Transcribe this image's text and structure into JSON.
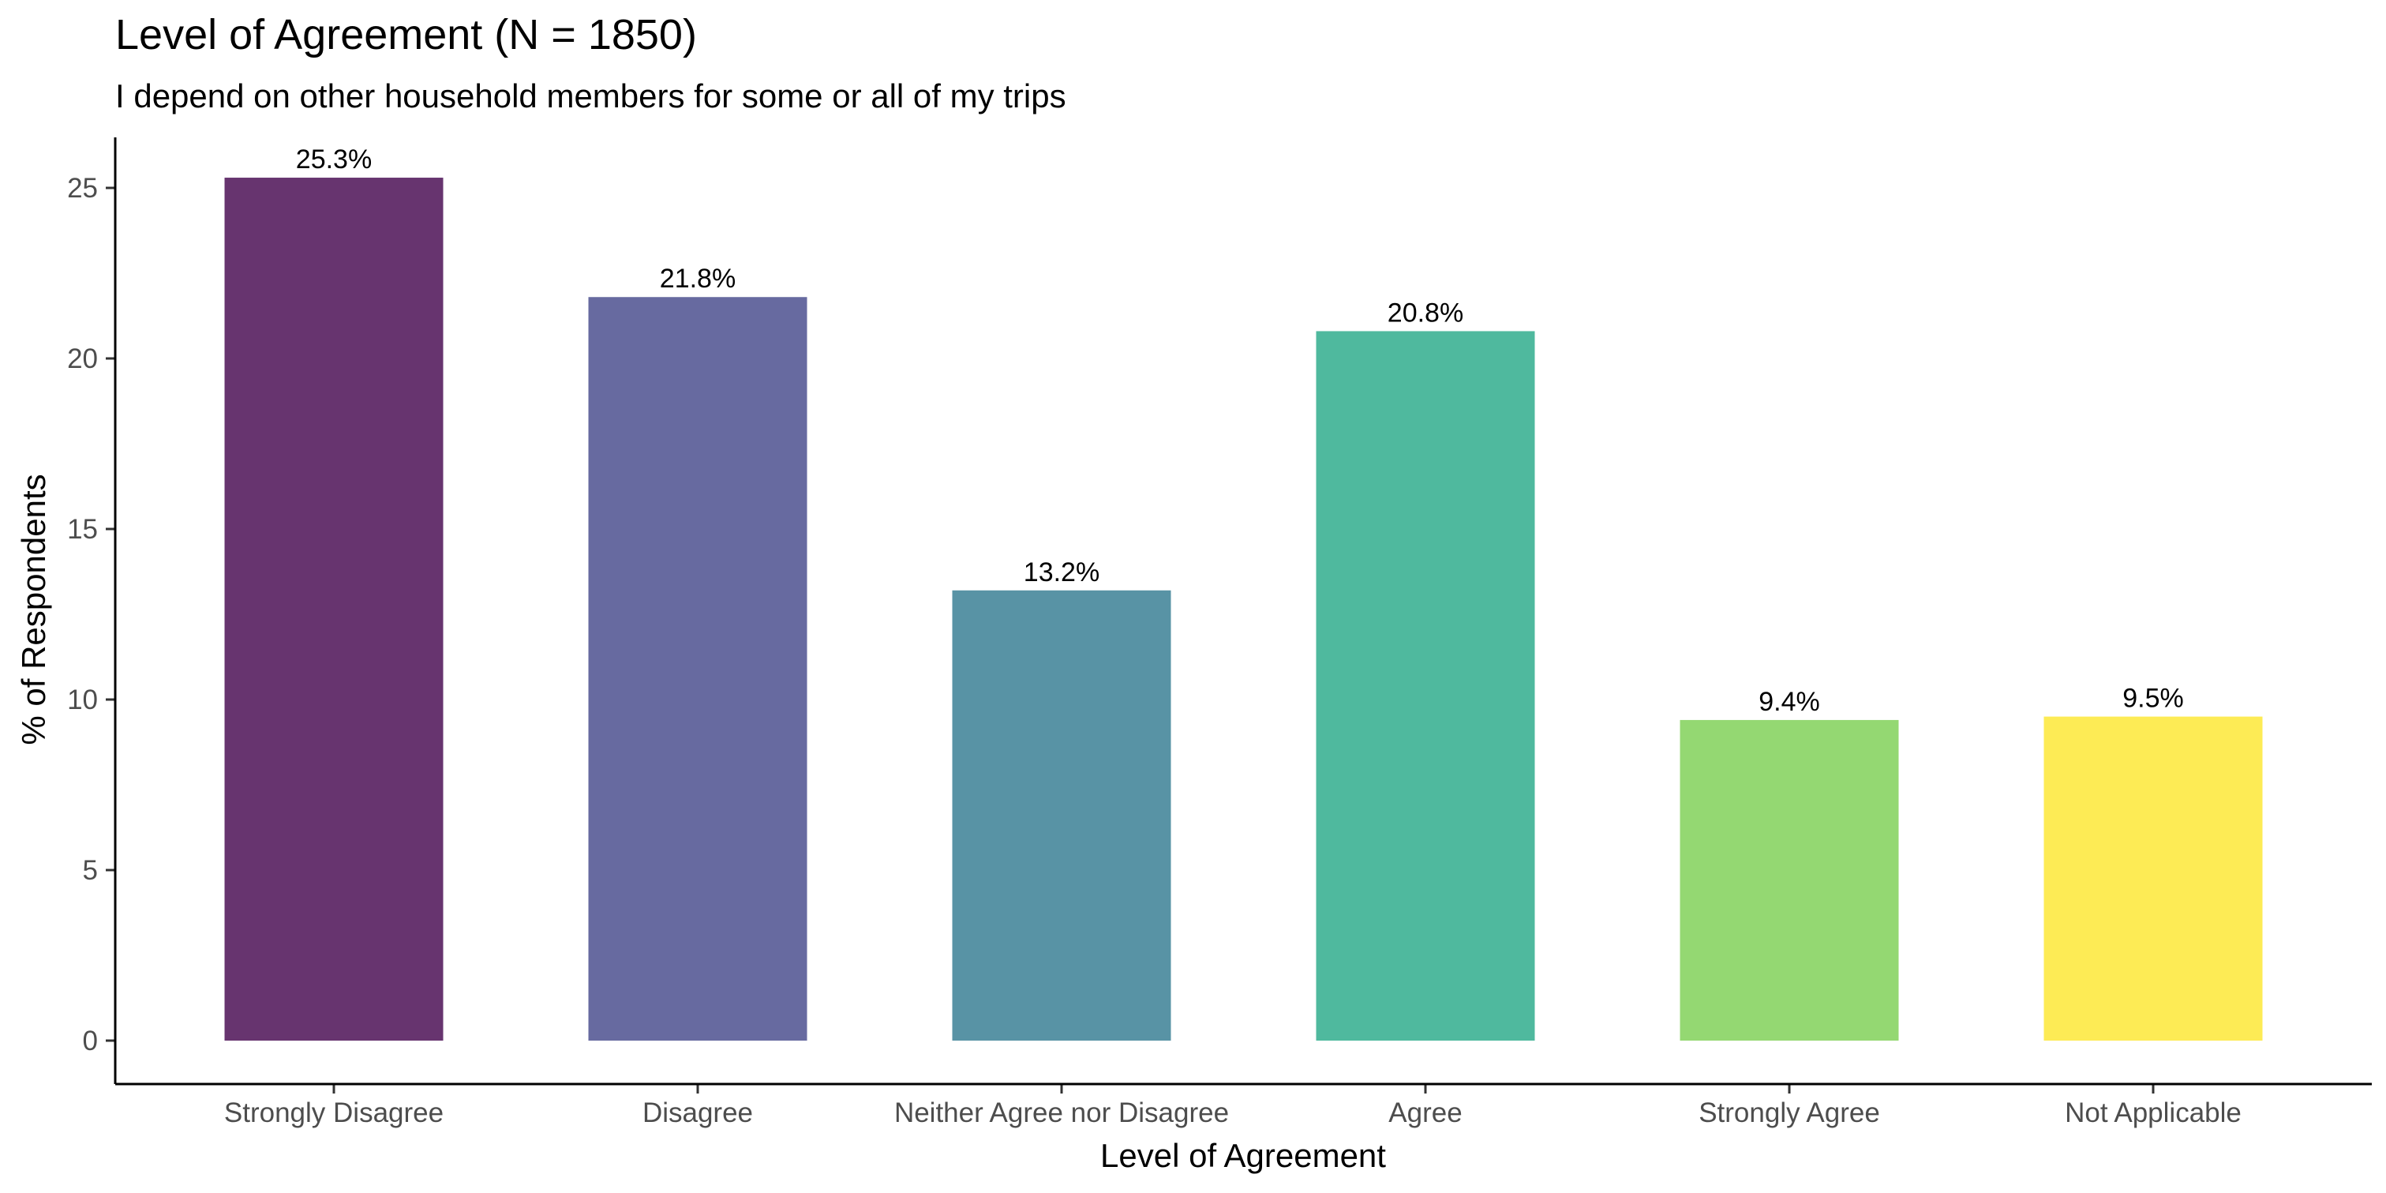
{
  "chart_data": {
    "type": "bar",
    "title": "Level of Agreement (N = 1850)",
    "subtitle": "I depend on other household members for some or all of my trips",
    "xlabel": "Level of Agreement",
    "ylabel": "% of Respondents",
    "categories": [
      "Strongly Disagree",
      "Disagree",
      "Neither Agree nor Disagree",
      "Agree",
      "Strongly Agree",
      "Not Applicable"
    ],
    "values": [
      25.3,
      21.8,
      13.2,
      20.8,
      9.4,
      9.5
    ],
    "data_labels": [
      "25.3%",
      "21.8%",
      "13.2%",
      "20.8%",
      "9.4%",
      "9.5%"
    ],
    "colors": [
      "#67346f",
      "#676aa0",
      "#5893a5",
      "#4fb99e",
      "#94d872",
      "#fdeb55"
    ],
    "yticks": [
      0,
      5,
      10,
      15,
      20,
      25
    ],
    "ylim": [
      0,
      26.5
    ],
    "grid": false,
    "legend": "none"
  }
}
